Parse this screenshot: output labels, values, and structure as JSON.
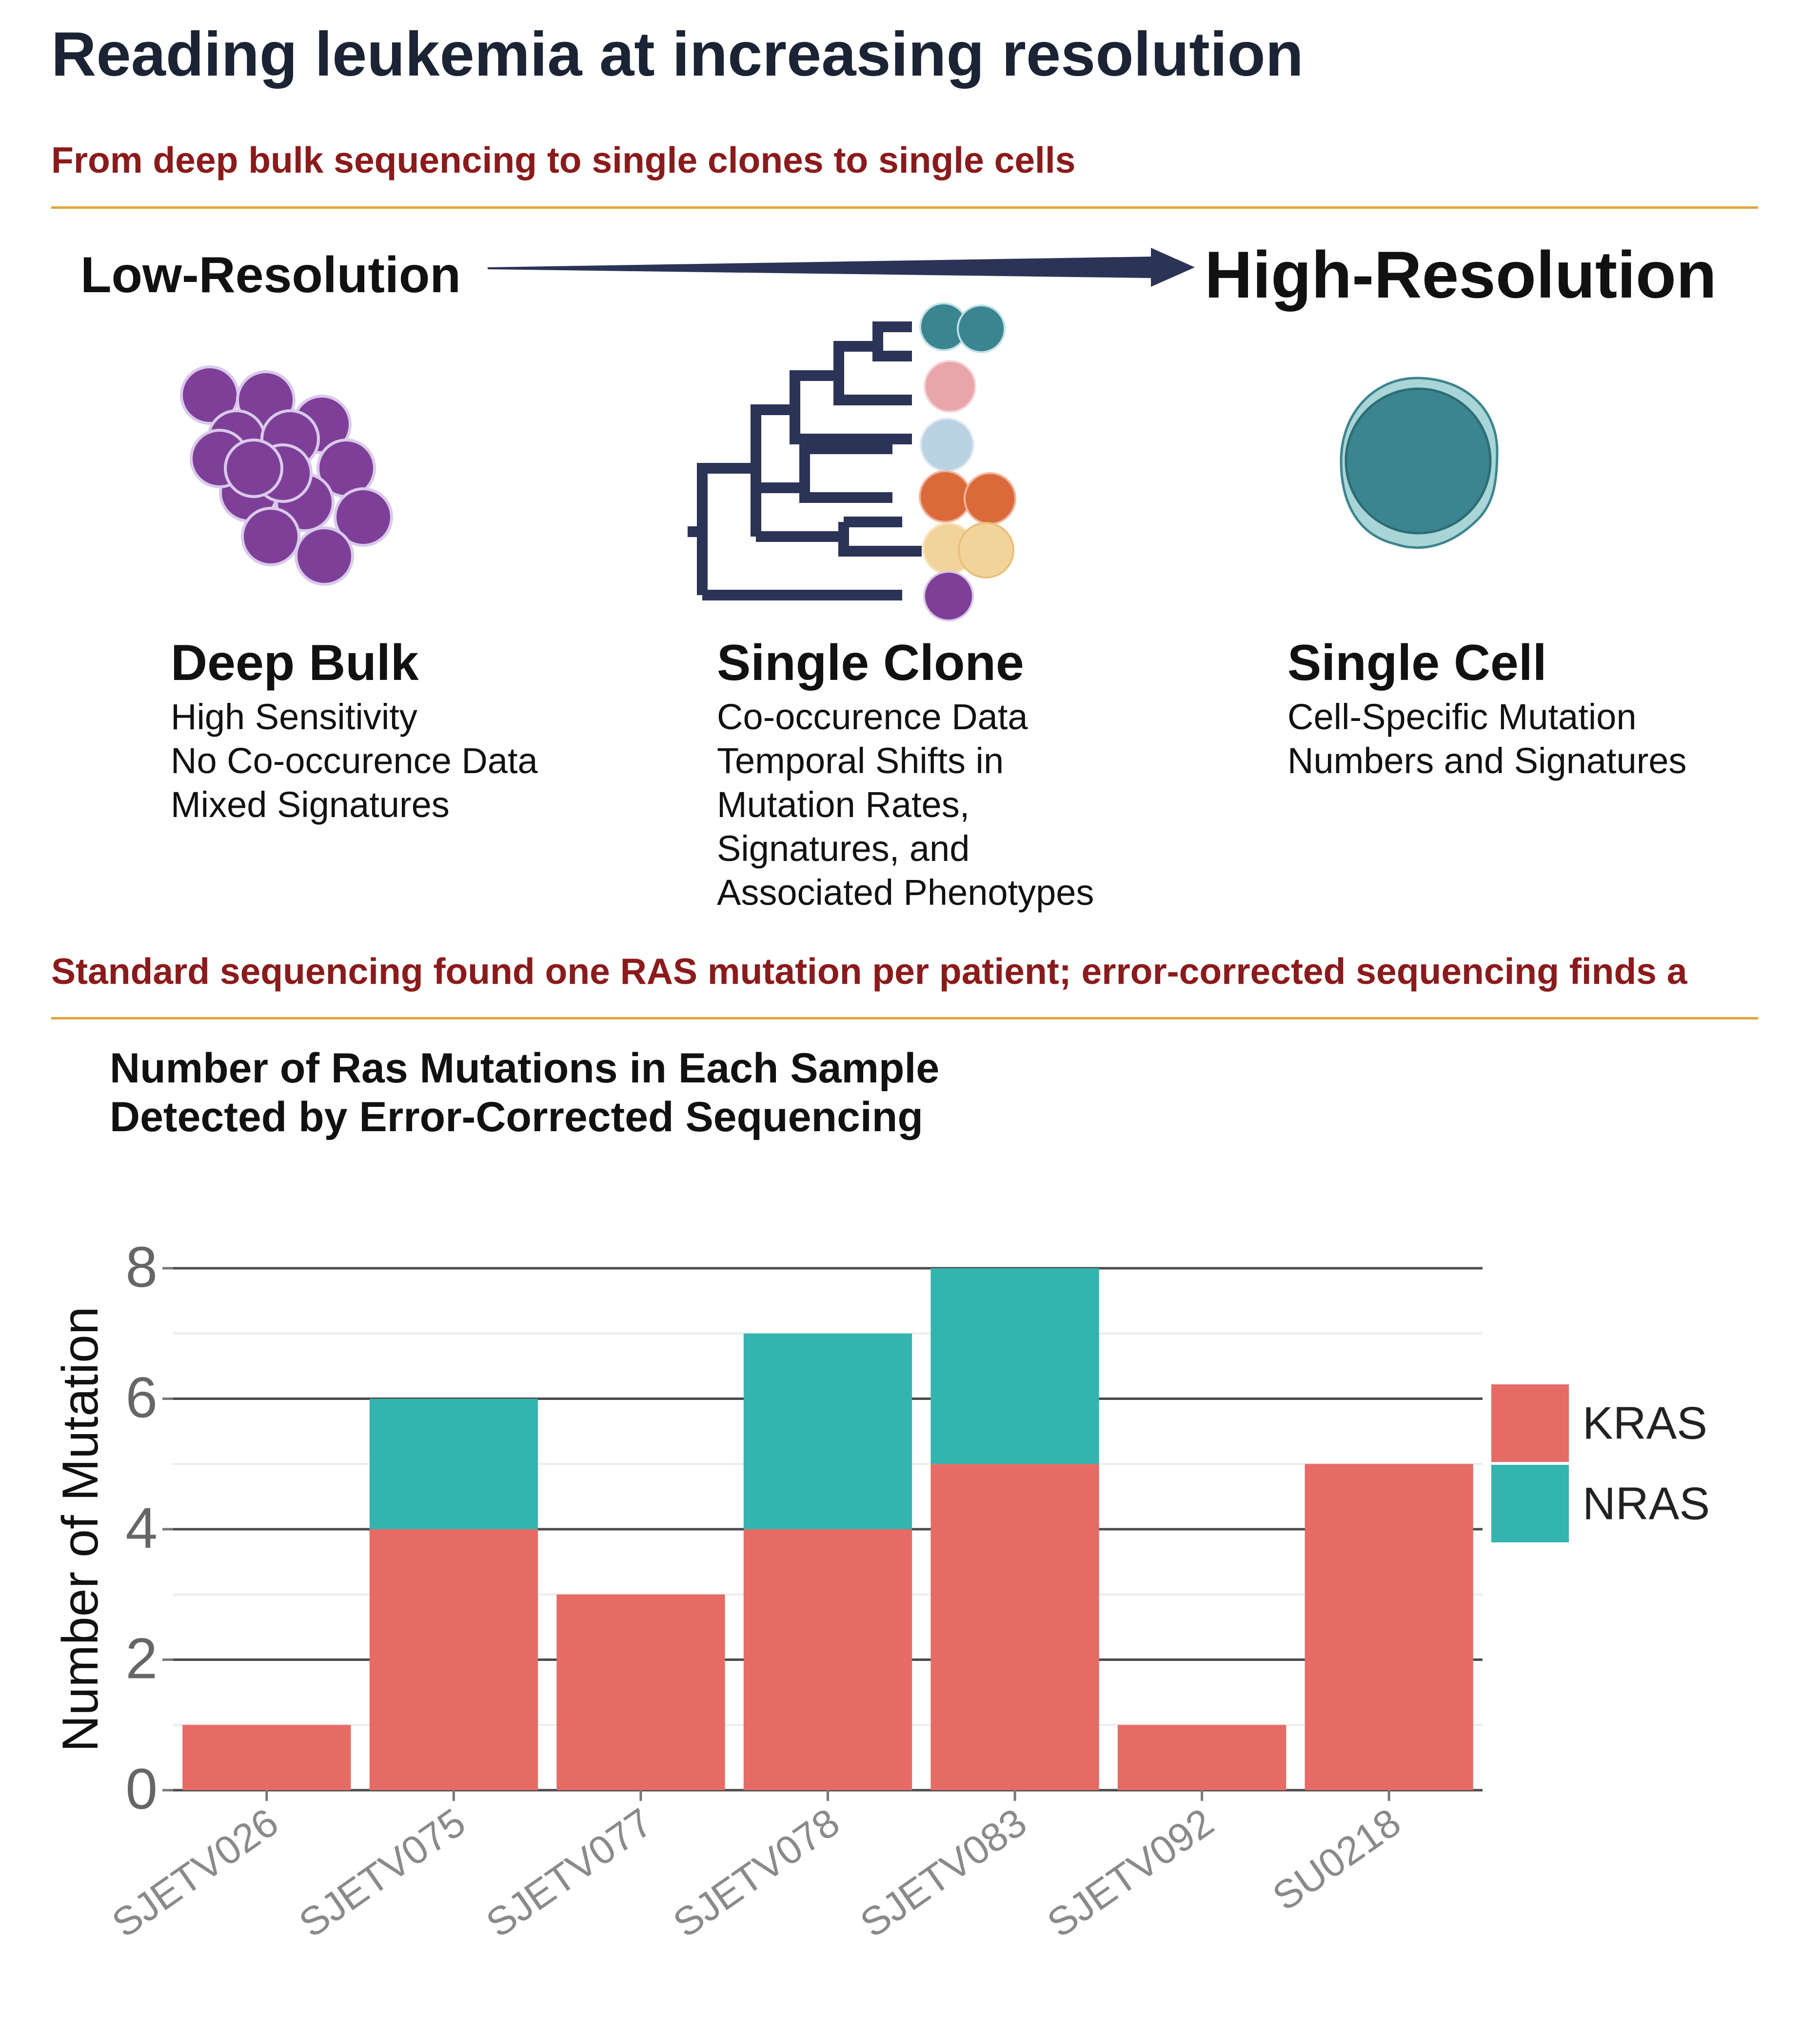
{
  "page": {
    "title": "Reading leukemia at increasing resolution"
  },
  "section1": {
    "heading": "From deep bulk sequencing to single clones to single cells",
    "low_label": "Low-Resolution",
    "high_label": "High-Resolution",
    "panels": [
      {
        "title": "Deep Bulk",
        "lines": [
          "High Sensitivity",
          "No Co-occurence Data",
          "Mixed Signatures"
        ]
      },
      {
        "title": "Single Clone",
        "lines": [
          "Co-occurence Data",
          "Temporal Shifts in",
          "Mutation Rates,",
          "Signatures, and",
          "Associated Phenotypes"
        ]
      },
      {
        "title": "Single Cell",
        "lines": [
          "Cell-Specific Mutation",
          "Numbers and Signatures"
        ]
      }
    ],
    "colors": {
      "arrow": "#2b3457",
      "bulk_cells": "#7e3f98",
      "tree": "#2b3457",
      "clone_teal": "#3a8590",
      "clone_pink": "#e9a6aa",
      "clone_blue": "#b9d3e2",
      "clone_orange": "#db6a3a",
      "clone_yellow": "#f2d39a",
      "clone_purple": "#7e3f98",
      "single_cell": "#3a8590"
    }
  },
  "section2": {
    "heading": "Standard sequencing found one RAS mutation per patient; error-corrected sequencing finds a",
    "chart_title_lines": [
      "Number of Ras Mutations in Each Sample",
      "Detected by Error-Corrected Sequencing"
    ]
  },
  "chart_data": {
    "type": "bar",
    "stacked": true,
    "title": "Number of Ras Mutations in Each Sample Detected by Error-Corrected Sequencing",
    "xlabel": "",
    "ylabel": "Number of Mutation",
    "categories": [
      "SJETV026",
      "SJETV075",
      "SJETV077",
      "SJETV078",
      "SJETV083",
      "SJETV092",
      "SU0218"
    ],
    "series": [
      {
        "name": "KRAS",
        "color": "#e56b64",
        "values": [
          1,
          4,
          3,
          4,
          5,
          1,
          5
        ]
      },
      {
        "name": "NRAS",
        "color": "#34b4ae",
        "values": [
          0,
          2,
          0,
          3,
          3,
          0,
          0
        ]
      }
    ],
    "ylim": [
      0,
      8
    ],
    "yticks": [
      0,
      2,
      4,
      6,
      8
    ],
    "grid": true,
    "legend_position": "right"
  }
}
